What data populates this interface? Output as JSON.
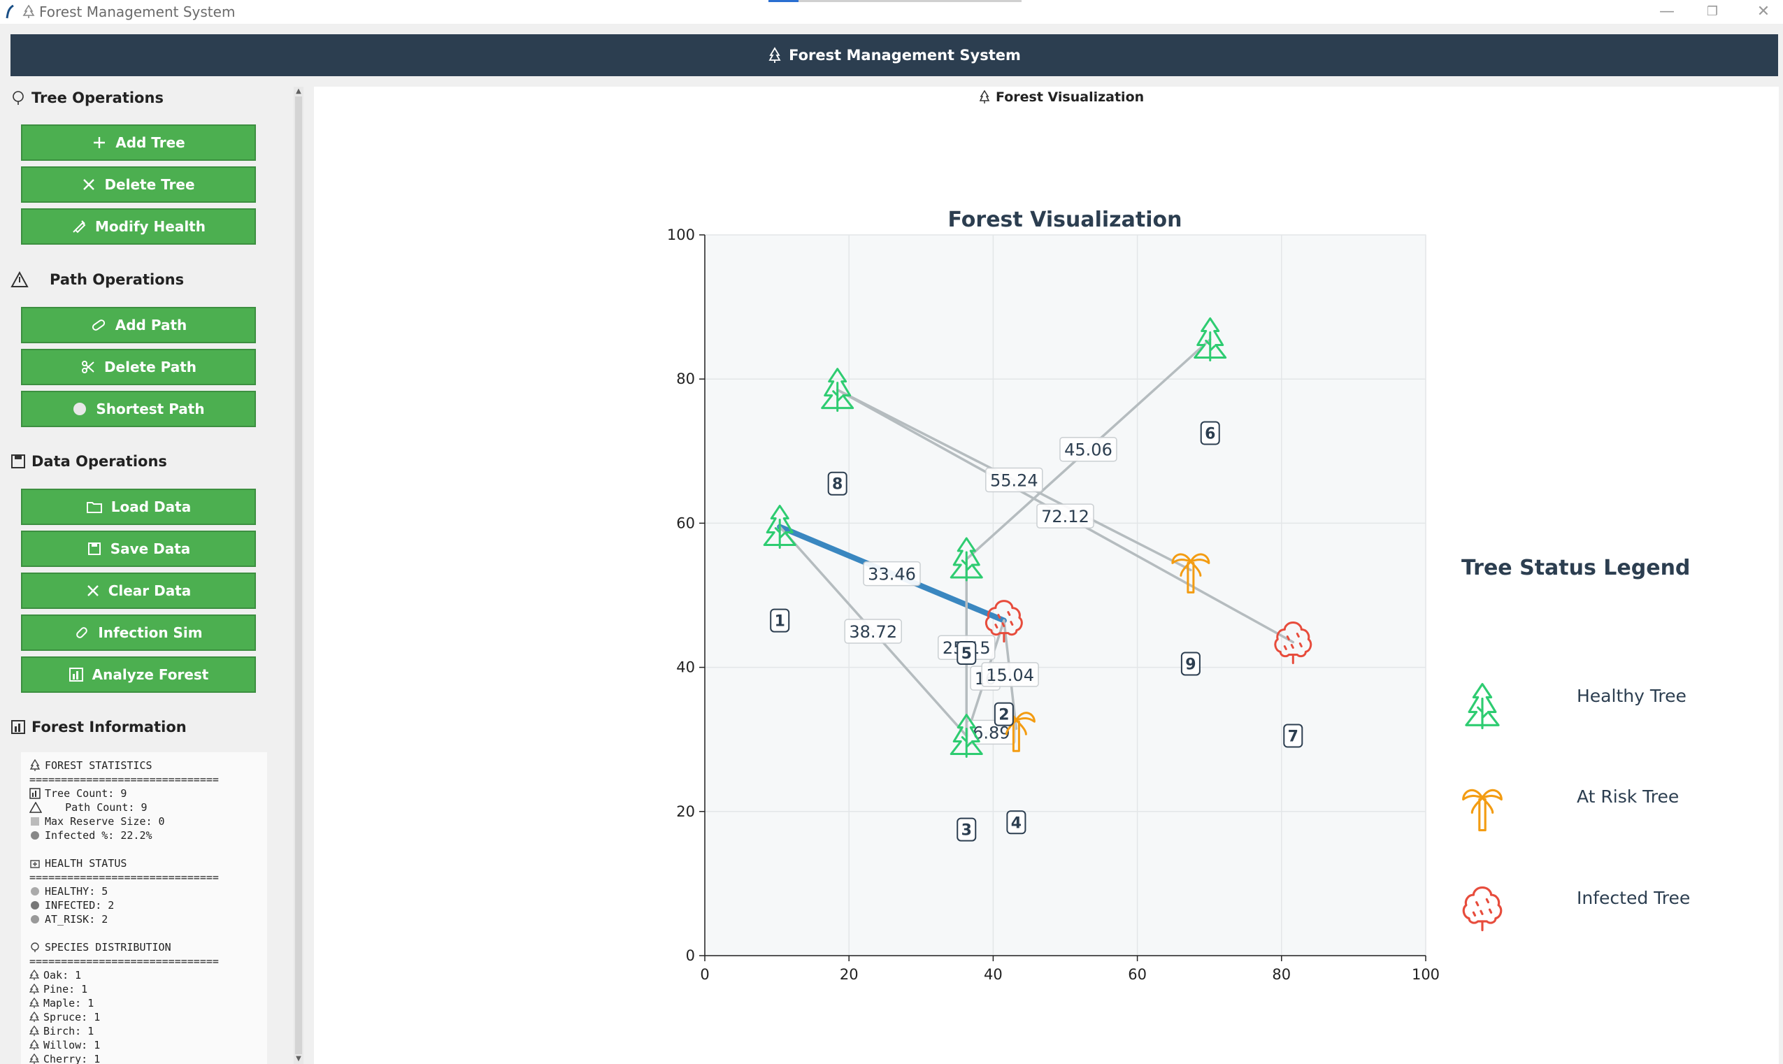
{
  "window": {
    "title": "Forest Management System",
    "progress_fraction": 0.12,
    "controls": [
      "—",
      "❐",
      "✕"
    ]
  },
  "header": {
    "title": "Forest Management System"
  },
  "sidebar": {
    "tree_ops": {
      "title": "Tree Operations",
      "buttons": [
        "Add Tree",
        "Delete Tree",
        "Modify Health"
      ]
    },
    "path_ops": {
      "title": "Path Operations",
      "buttons": [
        "Add Path",
        "Delete Path",
        "Shortest Path"
      ]
    },
    "data_ops": {
      "title": "Data Operations",
      "buttons": [
        "Load Data",
        "Save Data",
        "Clear Data",
        "Infection Sim",
        "Analyze Forest"
      ]
    },
    "info": {
      "title": "Forest Information",
      "lines": [
        "FOREST STATISTICS",
        "==============================",
        "Tree Count: 9",
        "   Path Count: 9",
        "Max Reserve Size: 0",
        "Infected %: 22.2%",
        "HEALTH STATUS",
        "==============================",
        "HEALTHY: 5",
        "INFECTED: 2",
        "AT_RISK: 2",
        "SPECIES DISTRIBUTION",
        "==============================",
        "Oak: 1",
        "Pine: 1",
        "Maple: 1",
        "Spruce: 1",
        "Birch: 1",
        "Willow: 1",
        "Cherry: 1"
      ]
    }
  },
  "main": {
    "title": "Forest Visualization"
  },
  "chart_data": {
    "type": "scatter",
    "title": "Forest Visualization",
    "xlim": [
      0,
      100
    ],
    "ylim": [
      0,
      100
    ],
    "x_ticks": [
      0,
      20,
      40,
      60,
      80,
      100
    ],
    "y_ticks": [
      0,
      20,
      40,
      60,
      80,
      100
    ],
    "grid": true,
    "colors": {
      "healthy": "#2ecc71",
      "at_risk": "#f39c12",
      "infected": "#e74c3c",
      "edge": "#b5bcbf",
      "highlight": "#3a87c0",
      "label_text": "#2c3e50"
    },
    "trees": [
      {
        "id": "1",
        "x": 10.4,
        "y": 59.5,
        "status": "healthy",
        "label_x": 10.4,
        "label_y": 46.5
      },
      {
        "id": "2",
        "x": 41.5,
        "y": 46.5,
        "status": "infected",
        "label_x": 41.5,
        "label_y": 33.5
      },
      {
        "id": "3",
        "x": 36.3,
        "y": 30.5,
        "status": "healthy",
        "label_x": 36.3,
        "label_y": 17.5
      },
      {
        "id": "4",
        "x": 43.2,
        "y": 31.5,
        "status": "at_risk",
        "label_x": 43.2,
        "label_y": 18.5
      },
      {
        "id": "5",
        "x": 36.3,
        "y": 55.0,
        "status": "healthy",
        "label_x": 36.3,
        "label_y": 42.0
      },
      {
        "id": "6",
        "x": 70.1,
        "y": 85.5,
        "status": "healthy",
        "label_x": 70.1,
        "label_y": 72.5
      },
      {
        "id": "7",
        "x": 81.6,
        "y": 43.5,
        "status": "infected",
        "label_x": 81.6,
        "label_y": 30.5
      },
      {
        "id": "8",
        "x": 18.4,
        "y": 78.5,
        "status": "healthy",
        "label_x": 18.4,
        "label_y": 65.5
      },
      {
        "id": "9",
        "x": 67.4,
        "y": 53.5,
        "status": "at_risk",
        "label_x": 67.4,
        "label_y": 40.5
      }
    ],
    "paths": [
      {
        "from": "1",
        "to": "2",
        "weight": "33.46",
        "highlight": true
      },
      {
        "from": "1",
        "to": "3",
        "weight": "38.72"
      },
      {
        "from": "5",
        "to": "6",
        "weight": "45.06"
      },
      {
        "from": "8",
        "to": "9",
        "weight": "55.24"
      },
      {
        "from": "8",
        "to": "7",
        "weight": "72.12"
      },
      {
        "from": "5",
        "to": "3",
        "weight": "25.15"
      },
      {
        "from": "2",
        "to": "3",
        "weight": "16"
      },
      {
        "from": "2",
        "to": "4",
        "weight": "15.04"
      },
      {
        "from": "3",
        "to": "4",
        "weight": "6.89"
      }
    ],
    "legend": {
      "title": "Tree Status Legend",
      "items": [
        {
          "label": "Healthy Tree",
          "status": "healthy"
        },
        {
          "label": "At Risk Tree",
          "status": "at_risk"
        },
        {
          "label": "Infected Tree",
          "status": "infected"
        }
      ]
    }
  },
  "icons": {
    "tree-operations": "tree-outline-icon",
    "path-operations": "warning-triangle-icon",
    "data-operations": "floppy-disk-icon",
    "forest-information": "bar-chart-icon"
  }
}
